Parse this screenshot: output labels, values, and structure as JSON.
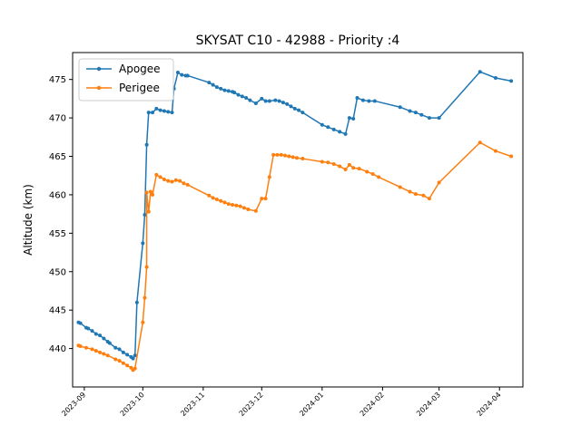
{
  "chart_data": {
    "type": "line",
    "title": "SKYSAT C10 - 42988 - Priority :4",
    "xlabel": "",
    "ylabel": "Altitude (km)",
    "xlim": [
      "2023-08-26",
      "2024-04-13"
    ],
    "ylim": [
      435.0,
      478.5
    ],
    "y_ticks": [
      440,
      445,
      450,
      455,
      460,
      465,
      470,
      475
    ],
    "x_ticks": [
      "2023-09",
      "2023-10",
      "2023-11",
      "2023-12",
      "2024-01",
      "2024-02",
      "2024-03",
      "2024-04"
    ],
    "x_ticks_dates": [
      "2023-09-01",
      "2023-10-01",
      "2023-11-01",
      "2023-12-01",
      "2024-01-01",
      "2024-02-01",
      "2024-03-01",
      "2024-04-01"
    ],
    "grid": false,
    "legend_position": "top-left",
    "series": [
      {
        "name": "Apogee",
        "color": "#1f77b4",
        "points": [
          [
            "2023-08-29",
            443.4
          ],
          [
            "2023-08-30",
            443.3
          ],
          [
            "2023-09-02",
            442.7
          ],
          [
            "2023-09-03",
            442.6
          ],
          [
            "2023-09-05",
            442.3
          ],
          [
            "2023-09-07",
            441.9
          ],
          [
            "2023-09-09",
            441.7
          ],
          [
            "2023-09-11",
            441.3
          ],
          [
            "2023-09-13",
            440.9
          ],
          [
            "2023-09-14",
            440.7
          ],
          [
            "2023-09-17",
            440.1
          ],
          [
            "2023-09-19",
            439.9
          ],
          [
            "2023-09-21",
            439.5
          ],
          [
            "2023-09-23",
            439.2
          ],
          [
            "2023-09-25",
            438.9
          ],
          [
            "2023-09-26",
            438.7
          ],
          [
            "2023-09-27",
            439.1
          ],
          [
            "2023-09-28",
            446.0
          ],
          [
            "2023-10-01",
            453.7
          ],
          [
            "2023-10-02",
            457.4
          ],
          [
            "2023-10-03",
            466.5
          ],
          [
            "2023-10-04",
            470.7
          ],
          [
            "2023-10-06",
            470.7
          ],
          [
            "2023-10-08",
            471.2
          ],
          [
            "2023-10-10",
            471.0
          ],
          [
            "2023-10-12",
            470.9
          ],
          [
            "2023-10-14",
            470.8
          ],
          [
            "2023-10-16",
            470.7
          ],
          [
            "2023-10-17",
            473.8
          ],
          [
            "2023-10-19",
            475.9
          ],
          [
            "2023-10-21",
            475.6
          ],
          [
            "2023-10-23",
            475.5
          ],
          [
            "2023-10-24",
            475.5
          ],
          [
            "2023-11-04",
            474.6
          ],
          [
            "2023-11-06",
            474.3
          ],
          [
            "2023-11-08",
            474.0
          ],
          [
            "2023-11-10",
            473.8
          ],
          [
            "2023-11-12",
            473.6
          ],
          [
            "2023-11-14",
            473.5
          ],
          [
            "2023-11-16",
            473.4
          ],
          [
            "2023-11-17",
            473.3
          ],
          [
            "2023-11-19",
            473.0
          ],
          [
            "2023-11-21",
            472.8
          ],
          [
            "2023-11-23",
            472.6
          ],
          [
            "2023-11-25",
            472.3
          ],
          [
            "2023-11-28",
            471.9
          ],
          [
            "2023-12-01",
            472.5
          ],
          [
            "2023-12-03",
            472.2
          ],
          [
            "2023-12-05",
            472.2
          ],
          [
            "2023-12-08",
            472.3
          ],
          [
            "2023-12-10",
            472.2
          ],
          [
            "2023-12-12",
            472.0
          ],
          [
            "2023-12-14",
            471.8
          ],
          [
            "2023-12-16",
            471.5
          ],
          [
            "2023-12-18",
            471.2
          ],
          [
            "2023-12-20",
            471.0
          ],
          [
            "2023-12-22",
            470.7
          ],
          [
            "2024-01-01",
            469.1
          ],
          [
            "2024-01-04",
            468.8
          ],
          [
            "2024-01-07",
            468.5
          ],
          [
            "2024-01-10",
            468.2
          ],
          [
            "2024-01-13",
            467.9
          ],
          [
            "2024-01-15",
            470.0
          ],
          [
            "2024-01-17",
            469.9
          ],
          [
            "2024-01-19",
            472.6
          ],
          [
            "2024-01-22",
            472.3
          ],
          [
            "2024-01-25",
            472.2
          ],
          [
            "2024-01-28",
            472.2
          ],
          [
            "2024-02-10",
            471.4
          ],
          [
            "2024-02-15",
            470.9
          ],
          [
            "2024-02-18",
            470.7
          ],
          [
            "2024-02-21",
            470.4
          ],
          [
            "2024-02-25",
            470.0
          ],
          [
            "2024-03-01",
            470.0
          ],
          [
            "2024-03-22",
            476.0
          ],
          [
            "2024-03-30",
            475.2
          ],
          [
            "2024-04-07",
            474.8
          ]
        ]
      },
      {
        "name": "Perigee",
        "color": "#ff7f0e",
        "points": [
          [
            "2023-08-29",
            440.4
          ],
          [
            "2023-08-30",
            440.3
          ],
          [
            "2023-09-02",
            440.1
          ],
          [
            "2023-09-05",
            439.9
          ],
          [
            "2023-09-07",
            439.7
          ],
          [
            "2023-09-09",
            439.5
          ],
          [
            "2023-09-11",
            439.3
          ],
          [
            "2023-09-13",
            439.1
          ],
          [
            "2023-09-17",
            438.6
          ],
          [
            "2023-09-19",
            438.4
          ],
          [
            "2023-09-21",
            438.1
          ],
          [
            "2023-09-23",
            437.8
          ],
          [
            "2023-09-25",
            437.5
          ],
          [
            "2023-09-26",
            437.2
          ],
          [
            "2023-09-27",
            437.4
          ],
          [
            "2023-10-01",
            443.4
          ],
          [
            "2023-10-02",
            446.6
          ],
          [
            "2023-10-03",
            450.6
          ],
          [
            "2023-10-03",
            460.3
          ],
          [
            "2023-10-04",
            457.8
          ],
          [
            "2023-10-05",
            460.4
          ],
          [
            "2023-10-06",
            460.0
          ],
          [
            "2023-10-08",
            462.6
          ],
          [
            "2023-10-10",
            462.3
          ],
          [
            "2023-10-12",
            462.0
          ],
          [
            "2023-10-14",
            461.8
          ],
          [
            "2023-10-16",
            461.7
          ],
          [
            "2023-10-18",
            461.9
          ],
          [
            "2023-10-20",
            461.8
          ],
          [
            "2023-10-22",
            461.5
          ],
          [
            "2023-10-24",
            461.3
          ],
          [
            "2023-11-04",
            459.9
          ],
          [
            "2023-11-06",
            459.6
          ],
          [
            "2023-11-08",
            459.4
          ],
          [
            "2023-11-10",
            459.2
          ],
          [
            "2023-11-12",
            459.0
          ],
          [
            "2023-11-14",
            458.8
          ],
          [
            "2023-11-16",
            458.7
          ],
          [
            "2023-11-18",
            458.6
          ],
          [
            "2023-11-20",
            458.5
          ],
          [
            "2023-11-22",
            458.3
          ],
          [
            "2023-11-24",
            458.1
          ],
          [
            "2023-11-28",
            457.9
          ],
          [
            "2023-12-01",
            459.5
          ],
          [
            "2023-12-03",
            459.5
          ],
          [
            "2023-12-05",
            462.3
          ],
          [
            "2023-12-07",
            465.2
          ],
          [
            "2023-12-09",
            465.2
          ],
          [
            "2023-12-11",
            465.2
          ],
          [
            "2023-12-13",
            465.1
          ],
          [
            "2023-12-15",
            465.0
          ],
          [
            "2023-12-17",
            464.9
          ],
          [
            "2023-12-19",
            464.8
          ],
          [
            "2023-12-22",
            464.7
          ],
          [
            "2024-01-01",
            464.3
          ],
          [
            "2024-01-04",
            464.2
          ],
          [
            "2024-01-07",
            464.0
          ],
          [
            "2024-01-10",
            463.7
          ],
          [
            "2024-01-13",
            463.3
          ],
          [
            "2024-01-15",
            463.9
          ],
          [
            "2024-01-17",
            463.5
          ],
          [
            "2024-01-20",
            463.4
          ],
          [
            "2024-01-24",
            463.0
          ],
          [
            "2024-01-27",
            462.7
          ],
          [
            "2024-01-30",
            462.3
          ],
          [
            "2024-02-10",
            461.0
          ],
          [
            "2024-02-15",
            460.4
          ],
          [
            "2024-02-18",
            460.1
          ],
          [
            "2024-02-22",
            459.9
          ],
          [
            "2024-02-25",
            459.5
          ],
          [
            "2024-03-01",
            461.6
          ],
          [
            "2024-03-22",
            466.8
          ],
          [
            "2024-03-30",
            465.7
          ],
          [
            "2024-04-07",
            465.0
          ]
        ]
      }
    ]
  }
}
